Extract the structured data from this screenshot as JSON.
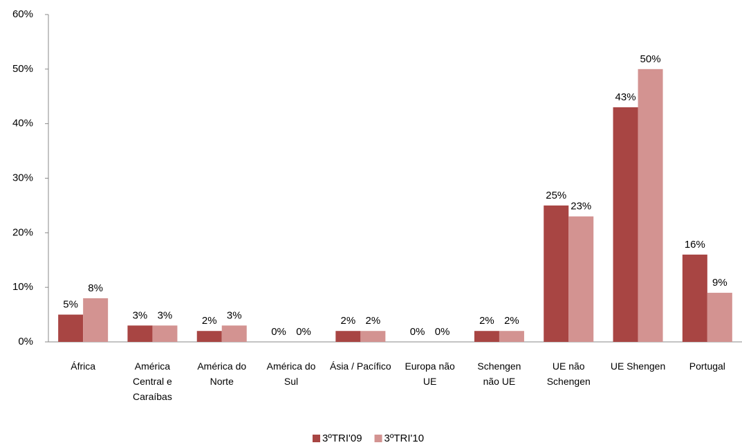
{
  "chart_data": {
    "type": "bar",
    "categories": [
      "África",
      "América Central e Caraíbas",
      "América do Norte",
      "América do Sul",
      "Ásia / Pacífico",
      "Europa não UE",
      "Schengen não UE",
      "UE não Schengen",
      "UE Shengen",
      "Portugal"
    ],
    "series": [
      {
        "name": "3ºTRI'09",
        "color": "#a84543",
        "values": [
          5,
          3,
          2,
          0,
          2,
          0,
          2,
          25,
          43,
          16
        ],
        "value_labels": [
          "5%",
          "3%",
          "2%",
          "0%",
          "2%",
          "0%",
          "2%",
          "25%",
          "43%",
          "16%"
        ]
      },
      {
        "name": "3ºTRI'10",
        "color": "#d39391",
        "values": [
          8,
          3,
          3,
          0,
          2,
          0,
          2,
          23,
          50,
          9
        ],
        "value_labels": [
          "8%",
          "3%",
          "3%",
          "0%",
          "2%",
          "0%",
          "2%",
          "23%",
          "50%",
          "9%"
        ]
      }
    ],
    "ylim": [
      0,
      60
    ],
    "yticks": [
      {
        "value": 0,
        "label": "0%"
      },
      {
        "value": 10,
        "label": "10%"
      },
      {
        "value": 20,
        "label": "20%"
      },
      {
        "value": 30,
        "label": "30%"
      },
      {
        "value": 40,
        "label": "40%"
      },
      {
        "value": 50,
        "label": "50%"
      },
      {
        "value": 60,
        "label": "60%"
      }
    ],
    "legend": "bottom",
    "grid": false
  }
}
